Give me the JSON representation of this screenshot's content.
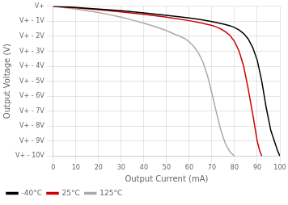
{
  "chart_data": {
    "type": "line",
    "xlabel": "Output Current (mA)",
    "ylabel": "Output Voltage (V)",
    "xlim": [
      0,
      100
    ],
    "ylim": [
      -10,
      0
    ],
    "xticks": [
      0,
      10,
      20,
      30,
      40,
      50,
      60,
      70,
      80,
      90,
      100
    ],
    "yticks": [
      {
        "value": 0,
        "label": "V+"
      },
      {
        "value": -1,
        "label": "V+ - 1V"
      },
      {
        "value": -2,
        "label": "V+ - 2V"
      },
      {
        "value": -3,
        "label": "V+ - 3V"
      },
      {
        "value": -4,
        "label": "V+ - 4V"
      },
      {
        "value": -5,
        "label": "V+ - 5V"
      },
      {
        "value": -6,
        "label": "V+ - 6V"
      },
      {
        "value": -7,
        "label": "V+ - 7V"
      },
      {
        "value": -8,
        "label": "V+ - 8V"
      },
      {
        "value": -9,
        "label": "V+ - 9V"
      },
      {
        "value": -10,
        "label": "V+ - 10V"
      }
    ],
    "grid": true,
    "legend": "lower left",
    "series": [
      {
        "name": "-40°C",
        "color": "#000000",
        "x": [
          0,
          10,
          20,
          30,
          40,
          50,
          60,
          65,
          70,
          75,
          78,
          80,
          82,
          84,
          86,
          88,
          90,
          92,
          94,
          96,
          98,
          99,
          100
        ],
        "values": [
          0,
          -0.08,
          -0.18,
          -0.3,
          -0.44,
          -0.6,
          -0.78,
          -0.89,
          -1.02,
          -1.18,
          -1.3,
          -1.42,
          -1.58,
          -1.82,
          -2.18,
          -2.75,
          -3.6,
          -5.0,
          -6.8,
          -8.3,
          -9.2,
          -9.65,
          -10.0
        ]
      },
      {
        "name": "25°C",
        "color": "#cc0000",
        "x": [
          0,
          10,
          20,
          30,
          40,
          50,
          60,
          65,
          70,
          72,
          74,
          76,
          78,
          80,
          82,
          84,
          86,
          88,
          90,
          91,
          92
        ],
        "values": [
          0,
          -0.1,
          -0.22,
          -0.37,
          -0.54,
          -0.73,
          -0.96,
          -1.1,
          -1.28,
          -1.38,
          -1.52,
          -1.7,
          -1.95,
          -2.35,
          -3.0,
          -4.0,
          -5.5,
          -7.2,
          -9.0,
          -9.6,
          -10.0
        ]
      },
      {
        "name": "125°C",
        "color": "#aaaaaa",
        "x": [
          0,
          10,
          20,
          25,
          30,
          35,
          40,
          45,
          50,
          55,
          58,
          60,
          62,
          64,
          66,
          68,
          70,
          72,
          74,
          76,
          78,
          80
        ],
        "values": [
          0,
          -0.18,
          -0.42,
          -0.57,
          -0.73,
          -0.92,
          -1.13,
          -1.36,
          -1.63,
          -1.95,
          -2.15,
          -2.38,
          -2.68,
          -3.1,
          -3.7,
          -4.6,
          -5.8,
          -7.1,
          -8.3,
          -9.2,
          -9.72,
          -10.0
        ]
      }
    ]
  }
}
